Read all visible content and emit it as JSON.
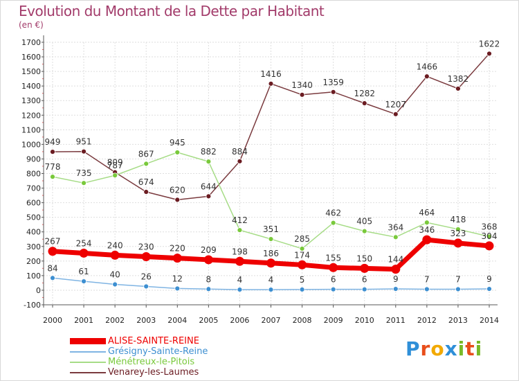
{
  "header": {
    "title": "Evolution du Montant de la Dette par Habitant",
    "subtitle": "(en €)"
  },
  "logo": {
    "text": "Proxiti",
    "colors": [
      "#2f8fd8",
      "#e84e1b",
      "#f2a900",
      "#2f8fd8",
      "#79b928",
      "#e84e1b",
      "#79b928"
    ]
  },
  "chart_data": {
    "type": "line",
    "categories": [
      "2000",
      "2001",
      "2002",
      "2003",
      "2004",
      "2005",
      "2006",
      "2007",
      "2008",
      "2009",
      "2010",
      "2011",
      "2012",
      "2013",
      "2014"
    ],
    "ylim": [
      -100,
      1700
    ],
    "yticks": [
      -100,
      0,
      100,
      200,
      300,
      400,
      500,
      600,
      700,
      800,
      900,
      1000,
      1100,
      1200,
      1300,
      1400,
      1500,
      1600,
      1700
    ],
    "grid": true,
    "legend_position": "bottom-left",
    "series": [
      {
        "name": "Venarey-les-Laumes",
        "color": "#6b1c22",
        "line_color": "#7a3a3e",
        "values": [
          949,
          951,
          809,
          674,
          620,
          644,
          884,
          1416,
          1340,
          1359,
          1282,
          1207,
          1466,
          1382,
          1622
        ]
      },
      {
        "name": "Ménétreux-le-Pitois",
        "color": "#79c93b",
        "line_color": "#a6dc86",
        "values": [
          778,
          735,
          787,
          867,
          945,
          882,
          412,
          351,
          285,
          462,
          405,
          364,
          464,
          418,
          368
        ]
      },
      {
        "name": "ALISE-SAINTE-REINE",
        "color": "#ee0000",
        "line_color": "#ee0000",
        "values": [
          267,
          254,
          240,
          230,
          220,
          209,
          198,
          186,
          174,
          155,
          150,
          144,
          346,
          323,
          304
        ]
      },
      {
        "name": "Grésigny-Sainte-Reine",
        "color": "#3d8fd1",
        "line_color": "#7fb4e3",
        "values": [
          84,
          61,
          40,
          26,
          12,
          8,
          4,
          4,
          5,
          6,
          6,
          9,
          7,
          7,
          9
        ]
      }
    ],
    "legend_order": [
      "ALISE-SAINTE-REINE",
      "Grésigny-Sainte-Reine",
      "Ménétreux-le-Pitois",
      "Venarey-les-Laumes"
    ]
  }
}
